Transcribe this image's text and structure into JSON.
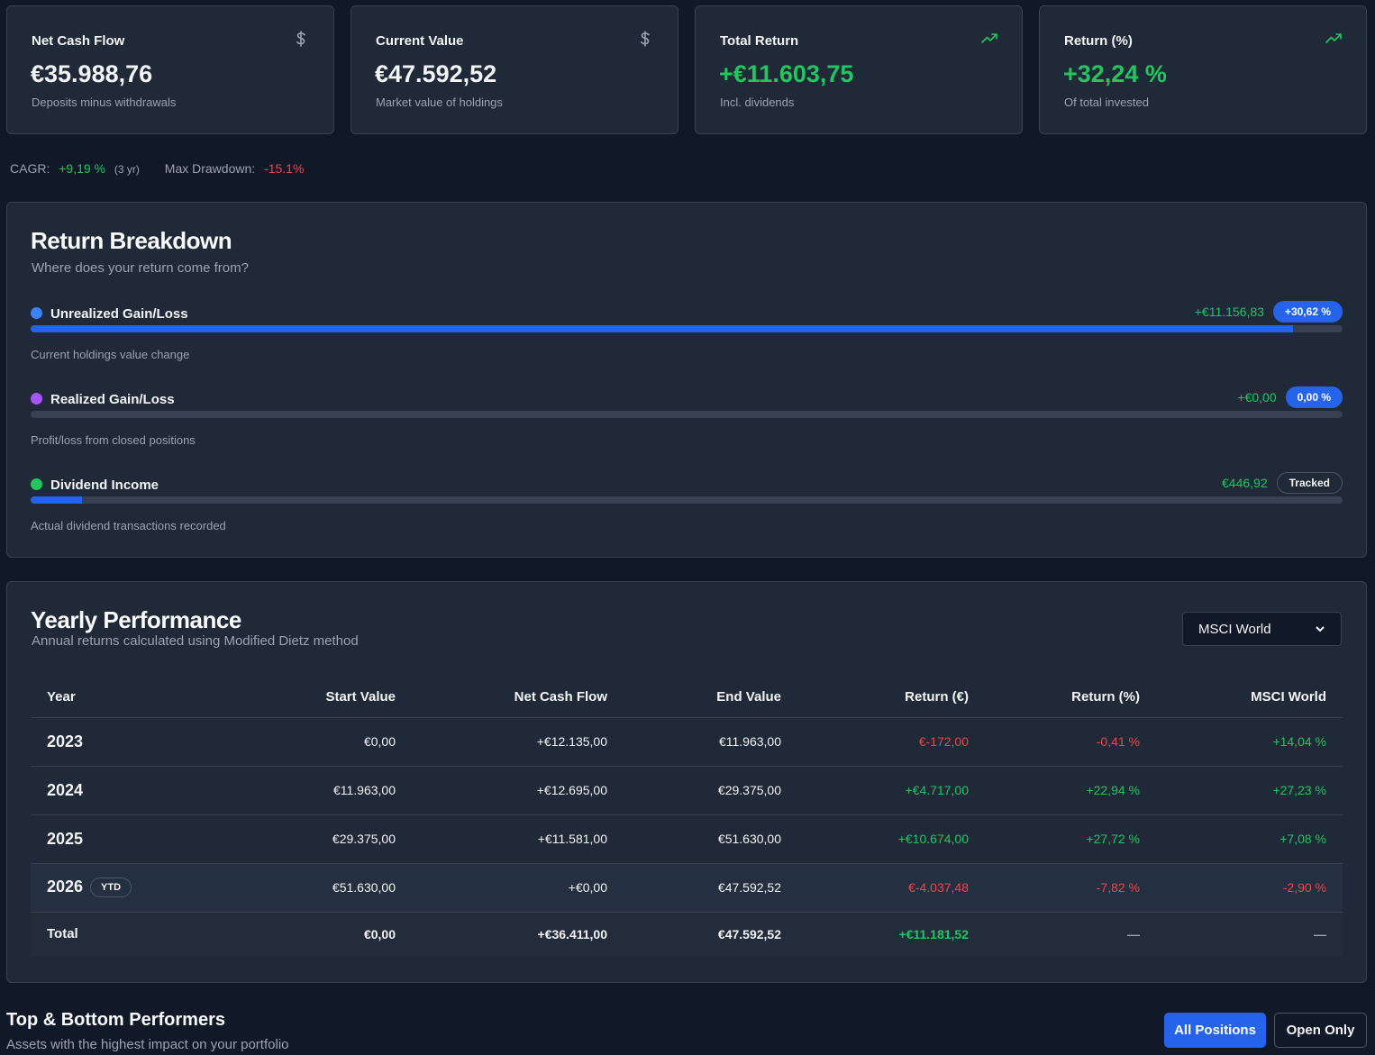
{
  "cards": [
    {
      "label": "Net Cash Flow",
      "value": "€35.988,76",
      "sub": "Deposits minus withdrawals",
      "icon": "dollar-icon",
      "color": "#f3f4f6"
    },
    {
      "label": "Current Value",
      "value": "€47.592,52",
      "sub": "Market value of holdings",
      "icon": "dollar-icon",
      "color": "#f3f4f6"
    },
    {
      "label": "Total Return",
      "value": "+€11.603,75",
      "sub": "Incl. dividends",
      "icon": "trending-up-icon",
      "color": "#22c55e"
    },
    {
      "label": "Return (%)",
      "value": "+32,24 %",
      "sub": "Of total invested",
      "icon": "trending-up-icon",
      "color": "#22c55e"
    }
  ],
  "metrics": {
    "cagr_label": "CAGR:",
    "cagr_value": "+9,19 %",
    "cagr_period": "(3 yr)",
    "drawdown_label": "Max Drawdown:",
    "drawdown_value": "-15.1%"
  },
  "breakdown": {
    "title": "Return Breakdown",
    "subtitle": "Where does your return come from?",
    "items": [
      {
        "name": "Unrealized Gain/Loss",
        "dot": "#3b82f6",
        "amount": "+€11.156,83",
        "badge": "+30,62 %",
        "badge_style": "blue",
        "fill": 0.962,
        "desc": "Current holdings value change"
      },
      {
        "name": "Realized Gain/Loss",
        "dot": "#a855f7",
        "amount": "+€0,00",
        "badge": "0,00 %",
        "badge_style": "blue",
        "fill": 0.0,
        "desc": "Profit/loss from closed positions"
      },
      {
        "name": "Dividend Income",
        "dot": "#22c55e",
        "amount": "€446,92",
        "badge": "Tracked",
        "badge_style": "out",
        "fill": 0.039,
        "desc": "Actual dividend transactions recorded"
      }
    ]
  },
  "yearly": {
    "title": "Yearly Performance",
    "subtitle": "Annual returns calculated using Modified Dietz method",
    "benchmark_selected": "MSCI World",
    "columns": [
      "Year",
      "Start Value",
      "Net Cash Flow",
      "End Value",
      "Return (€)",
      "Return (%)",
      "MSCI World"
    ],
    "rows": [
      {
        "year": "2023",
        "start": "€0,00",
        "ncf": "+€12.135,00",
        "end": "€11.963,00",
        "ret": "€-172,00",
        "pct": "-0,41 %",
        "bench": "+14,04 %",
        "ret_neg": true,
        "bench_neg": false,
        "ytd": false
      },
      {
        "year": "2024",
        "start": "€11.963,00",
        "ncf": "+€12.695,00",
        "end": "€29.375,00",
        "ret": "+€4.717,00",
        "pct": "+22,94 %",
        "bench": "+27,23 %",
        "ret_neg": false,
        "bench_neg": false,
        "ytd": false
      },
      {
        "year": "2025",
        "start": "€29.375,00",
        "ncf": "+€11.581,00",
        "end": "€51.630,00",
        "ret": "+€10.674,00",
        "pct": "+27,72 %",
        "bench": "+7,08 %",
        "ret_neg": false,
        "bench_neg": false,
        "ytd": false
      },
      {
        "year": "2026",
        "start": "€51.630,00",
        "ncf": "+€0,00",
        "end": "€47.592,52",
        "ret": "€-4.037,48",
        "pct": "-7,82 %",
        "bench": "-2,90 %",
        "ret_neg": true,
        "bench_neg": true,
        "ytd": true
      }
    ],
    "ytd_label": "YTD",
    "total": {
      "label": "Total",
      "start": "€0,00",
      "ncf": "+€36.411,00",
      "end": "€47.592,52",
      "ret": "+€11.181,52",
      "pct": "—",
      "bench": "—"
    }
  },
  "performers": {
    "title": "Top & Bottom Performers",
    "subtitle": "Assets with the highest impact on your portfolio",
    "btn_all": "All Positions",
    "btn_open": "Open Only"
  }
}
